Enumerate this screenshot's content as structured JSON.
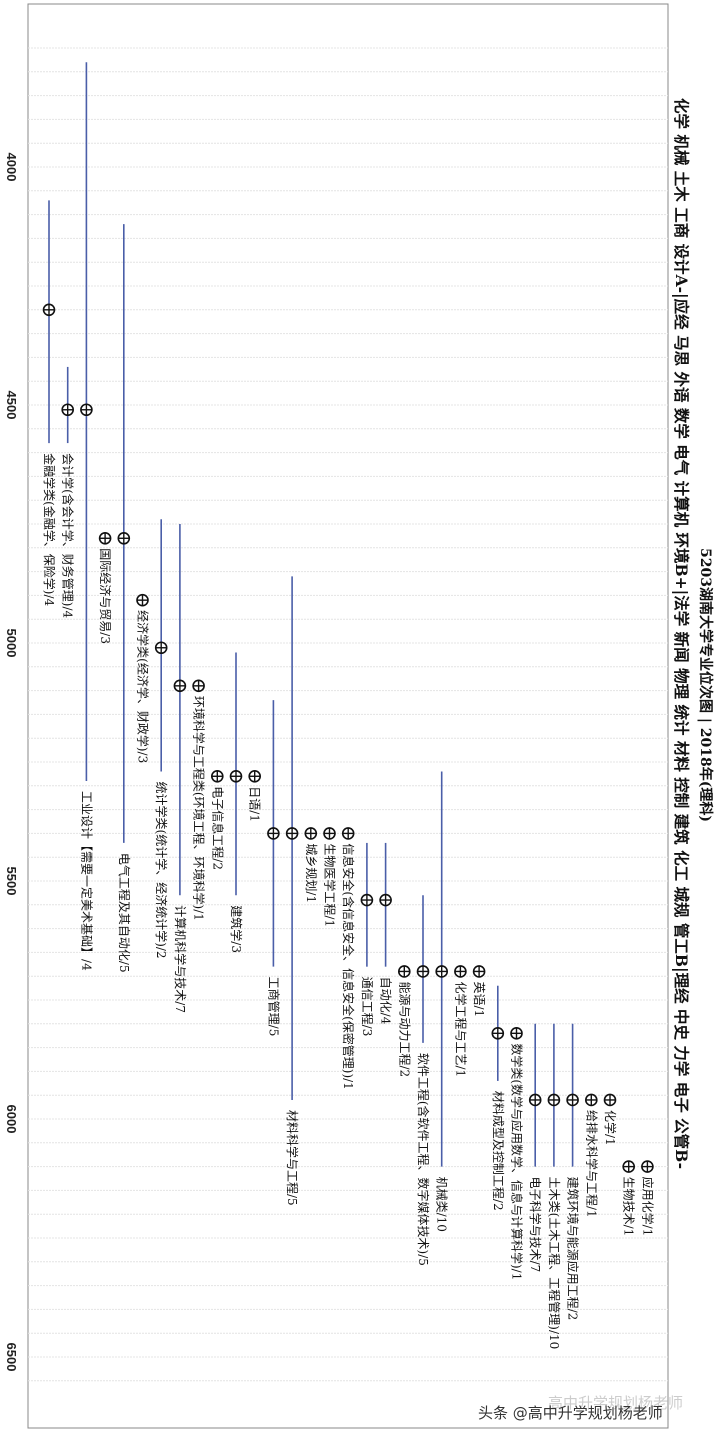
{
  "chart_data": {
    "type": "scatter",
    "title": "5203湖南大学专业位次图 | 2018年(理科)",
    "subtitle": "化学 机械 土木 工商 设计A-|应经 马思 外语 数学 电气 计算机 环境B+|法学 新闻 物理 统计 材料 控制 建筑 化工 城规 管工B|理经 中史 力学 电子 公管B-",
    "rank_axis": {
      "range": [
        3730,
        6590
      ],
      "ticks": [
        4000,
        4500,
        5000,
        5500,
        6000,
        6500
      ]
    },
    "majors": [
      {
        "label": "金融学类(金融学、保险学)/4",
        "center": 4300,
        "min": 4070,
        "max": 4580
      },
      {
        "label": "会计学(含会计学、财务管理)/4",
        "center": 4510,
        "min": 4420,
        "max": 4580
      },
      {
        "label": "工业设计【需要一定美术基础】/4",
        "center": 4510,
        "min": 3780,
        "max": 5290
      },
      {
        "label": "国际经济与贸易/3",
        "center": 4780,
        "min": 4780,
        "max": 4780
      },
      {
        "label": "电气工程及其自动化/5",
        "center": 4780,
        "min": 4120,
        "max": 5420
      },
      {
        "label": "经济学类(经济学、财政学)/3",
        "center": 4910,
        "min": 4910,
        "max": 4910
      },
      {
        "label": "统计学类(统计学、经济统计学)/2",
        "center": 5010,
        "min": 4740,
        "max": 5270
      },
      {
        "label": "计算机科学与技术/7",
        "center": 5090,
        "min": 4750,
        "max": 5530
      },
      {
        "label": "环境科学与工程类(环境工程、环境科学)/1",
        "center": 5090,
        "min": 5090,
        "max": 5090
      },
      {
        "label": "电子信息工程/2",
        "center": 5280,
        "min": 5280,
        "max": 5280
      },
      {
        "label": "建筑学/3",
        "center": 5280,
        "min": 5020,
        "max": 5530
      },
      {
        "label": "日语/1",
        "center": 5280,
        "min": 5280,
        "max": 5280
      },
      {
        "label": "工商管理/5",
        "center": 5400,
        "min": 5120,
        "max": 5680
      },
      {
        "label": "材料科学与工程/5",
        "center": 5400,
        "min": 4860,
        "max": 5960
      },
      {
        "label": "城乡规划/1",
        "center": 5400,
        "min": 5400,
        "max": 5400
      },
      {
        "label": "生物医学工程/1",
        "center": 5400,
        "min": 5400,
        "max": 5400
      },
      {
        "label": "信息安全(含信息安全、信息安全(保密管理))/1",
        "center": 5400,
        "min": 5400,
        "max": 5400
      },
      {
        "label": "通信工程/3",
        "center": 5540,
        "min": 5420,
        "max": 5680
      },
      {
        "label": "自动化/4",
        "center": 5540,
        "min": 5420,
        "max": 5680
      },
      {
        "label": "能源与动力工程/2",
        "center": 5690,
        "min": 5690,
        "max": 5690
      },
      {
        "label": "软件工程(含软件工程、数字媒体技术)/5",
        "center": 5690,
        "min": 5530,
        "max": 5840
      },
      {
        "label": "机械类/10",
        "center": 5690,
        "min": 5270,
        "max": 6100
      },
      {
        "label": "化学工程与工艺/1",
        "center": 5690,
        "min": 5690,
        "max": 5690
      },
      {
        "label": "英语/1",
        "center": 5690,
        "min": 5690,
        "max": 5690
      },
      {
        "label": "材料成型及控制工程/2",
        "center": 5820,
        "min": 5720,
        "max": 5920
      },
      {
        "label": "数学类(数学与应用数学、信息与计算科学)/1",
        "center": 5820,
        "min": 5820,
        "max": 5820
      },
      {
        "label": "电子科学与技术/7",
        "center": 5960,
        "min": 5800,
        "max": 6100
      },
      {
        "label": "土木类(土木工程、工程管理)/10",
        "center": 5960,
        "min": 5800,
        "max": 6100
      },
      {
        "label": "建筑环境与能源应用工程/2",
        "center": 5960,
        "min": 5800,
        "max": 6100
      },
      {
        "label": "给排水科学与工程/1",
        "center": 5960,
        "min": 5960,
        "max": 5960
      },
      {
        "label": "化学/1",
        "center": 5960,
        "min": 5960,
        "max": 5960
      },
      {
        "label": "生物技术/1",
        "center": 6100,
        "min": 6100,
        "max": 6100
      },
      {
        "label": "应用化学/1",
        "center": 6100,
        "min": 6100,
        "max": 6100
      }
    ]
  },
  "watermark": "头条 @高中升学规划杨老师",
  "watermark_faint": "高中升学规划杨老师"
}
